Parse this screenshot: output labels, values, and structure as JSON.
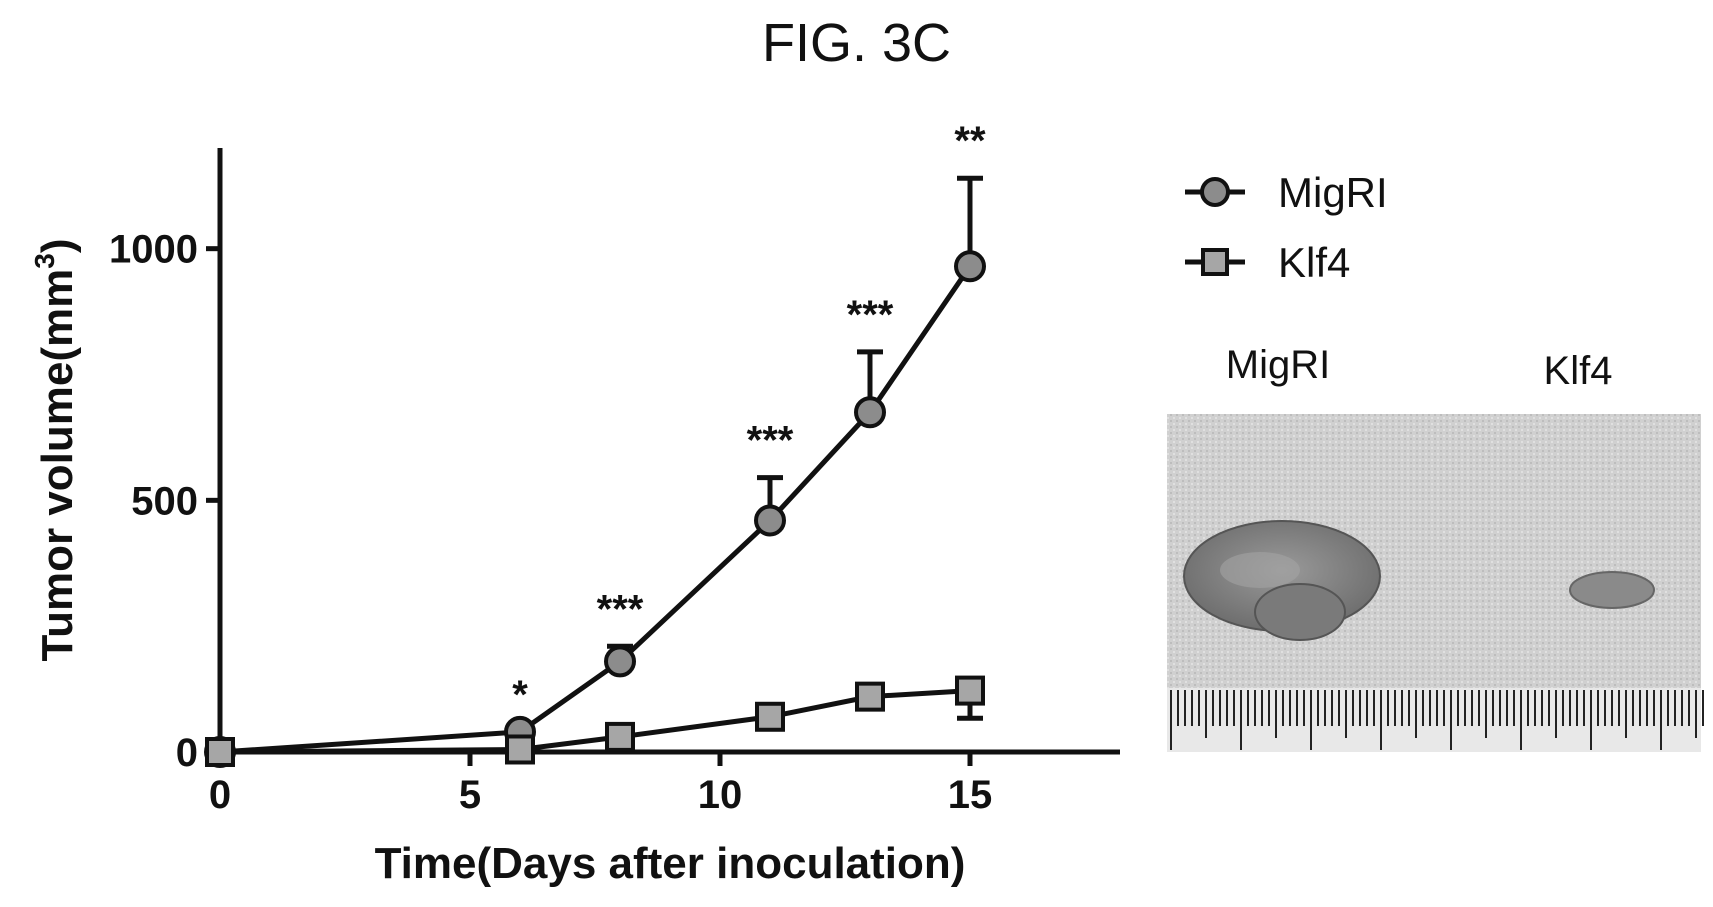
{
  "figure": {
    "title": "FIG. 3C"
  },
  "chart_data": {
    "type": "line",
    "xlabel": "Time(Days after inoculation)",
    "ylabel_main": "Tumor volume(mm",
    "ylabel_sup": "3",
    "ylabel_close": ")",
    "xlim": [
      0,
      18
    ],
    "ylim": [
      0,
      1200
    ],
    "xticks": [
      0,
      5,
      10,
      15
    ],
    "yticks": [
      0,
      500,
      1000
    ],
    "legend_position": "top-right",
    "series": [
      {
        "name": "MigRI",
        "marker": "circle",
        "color": "#8c8c8c",
        "x": [
          0,
          6,
          8,
          11,
          13,
          15
        ],
        "y": [
          0,
          40,
          180,
          460,
          675,
          965
        ],
        "err_up": [
          0,
          0,
          30,
          85,
          120,
          175
        ]
      },
      {
        "name": "Klf4",
        "marker": "square",
        "color": "#a6a6a6",
        "x": [
          0,
          6,
          8,
          11,
          13,
          15
        ],
        "y": [
          0,
          5,
          30,
          70,
          110,
          122
        ],
        "err_down": [
          0,
          0,
          0,
          0,
          0,
          55
        ]
      }
    ],
    "annotations": [
      {
        "x": 6,
        "y_above": 40,
        "text": "*"
      },
      {
        "x": 8,
        "y_above": 210,
        "text": "***"
      },
      {
        "x": 11,
        "y_above": 545,
        "text": "***"
      },
      {
        "x": 13,
        "y_above": 795,
        "text": "***"
      },
      {
        "x": 15,
        "y_above": 1140,
        "text": "**"
      }
    ]
  },
  "photo": {
    "labels": [
      "MigRI",
      "Klf4"
    ]
  }
}
